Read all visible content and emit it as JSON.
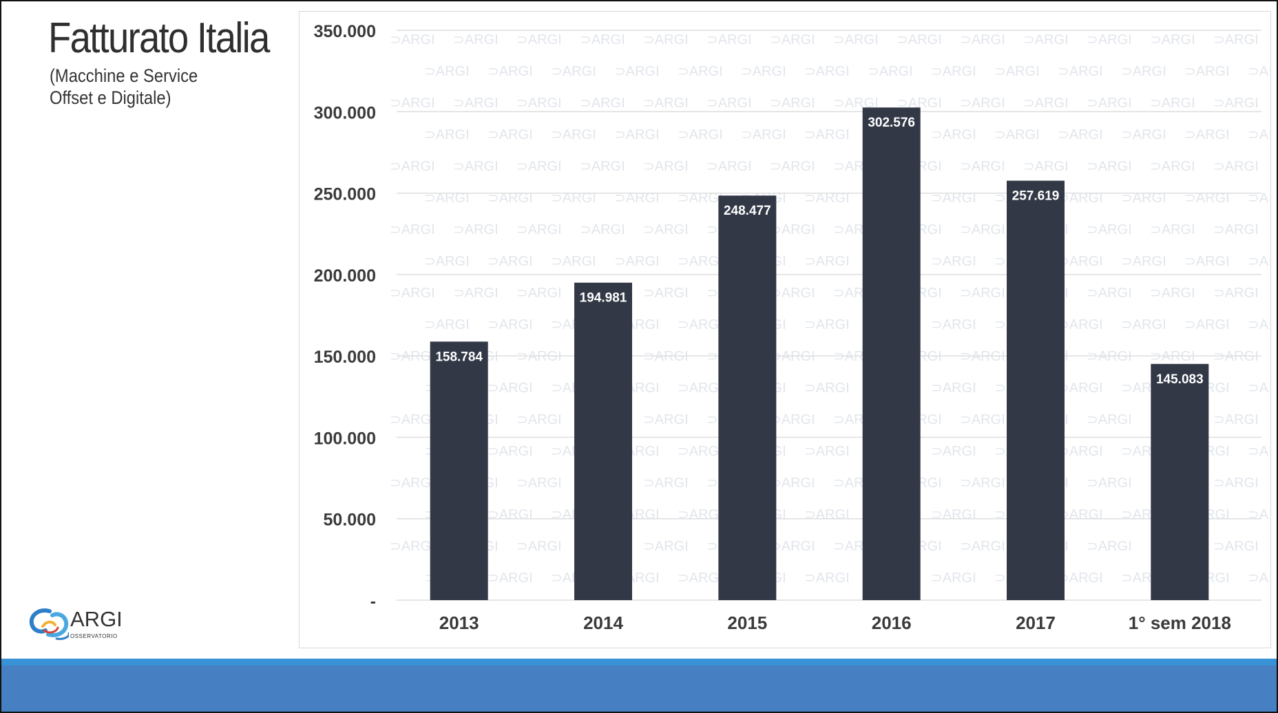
{
  "slide": {
    "title": "Fatturato Italia",
    "subtitle_line1": "(Macchine e Service",
    "subtitle_line2": "Offset e Digitale)"
  },
  "logo": {
    "name": "ARGI",
    "tagline": "OSSERVATORIO",
    "icon": "argi-logo-swirl-icon"
  },
  "watermark": "ARGI",
  "colors": {
    "bar": "#323846",
    "bar_label": "#ffffff",
    "axis_text": "#3a3a3a",
    "footer_light": "#3a92d6",
    "footer": "#4680c2"
  },
  "chart_data": {
    "type": "bar",
    "categories": [
      "2013",
      "2014",
      "2015",
      "2016",
      "2017",
      "1° sem 2018"
    ],
    "values": [
      158784,
      194981,
      248477,
      302576,
      257619,
      145083
    ],
    "data_labels": [
      "158.784",
      "194.981",
      "248.477",
      "302.576",
      "257.619",
      "145.083"
    ],
    "ylim": [
      0,
      350000
    ],
    "yticks": [
      0,
      50000,
      100000,
      150000,
      200000,
      250000,
      300000,
      350000
    ],
    "ytick_labels": [
      "-",
      "50.000",
      "100.000",
      "150.000",
      "200.000",
      "250.000",
      "300.000",
      "350.000"
    ],
    "grid": true,
    "legend": "none"
  }
}
